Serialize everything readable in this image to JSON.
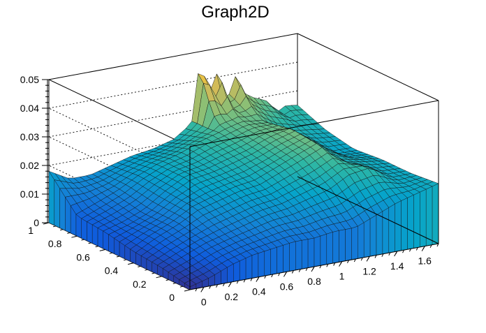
{
  "chart_data": {
    "type": "surface3d",
    "title": "Graph2D",
    "x_ticks": [
      "0",
      "0.2",
      "0.4",
      "0.6",
      "0.8",
      "1",
      "1.2",
      "1.4",
      "1.6"
    ],
    "y_ticks": [
      "0",
      "0.2",
      "0.4",
      "0.6",
      "0.8",
      "1"
    ],
    "z_ticks": [
      "0",
      "0.01",
      "0.02",
      "0.03",
      "0.04",
      "0.05"
    ],
    "xlim": [
      -0.1,
      1.7
    ],
    "ylim": [
      0,
      1
    ],
    "zlim": [
      0,
      0.05
    ],
    "colormap": [
      "#352a87",
      "#0f5cdd",
      "#1481d6",
      "#06a4ca",
      "#2eb7a4",
      "#87bf77",
      "#d1bb59",
      "#fec832",
      "#f9fb0e"
    ],
    "grid_x": [
      -0.1,
      0.05,
      0.2,
      0.35,
      0.5,
      0.65,
      0.8,
      0.95,
      1.1,
      1.25,
      1.4,
      1.55,
      1.7
    ],
    "grid_y": [
      0,
      0.2,
      0.4,
      0.6,
      0.8,
      1.0
    ],
    "z_values": [
      [
        0.001,
        0.003,
        0.006,
        0.008,
        0.009,
        0.01,
        0.01,
        0.011,
        0.011,
        0.014,
        0.017,
        0.019,
        0.021
      ],
      [
        0.003,
        0.006,
        0.009,
        0.011,
        0.013,
        0.015,
        0.016,
        0.018,
        0.02,
        0.024,
        0.025,
        0.02,
        0.02
      ],
      [
        0.004,
        0.008,
        0.011,
        0.015,
        0.017,
        0.019,
        0.02,
        0.023,
        0.026,
        0.029,
        0.022,
        0.021,
        0.02
      ],
      [
        0.006,
        0.008,
        0.011,
        0.016,
        0.02,
        0.021,
        0.023,
        0.025,
        0.028,
        0.03,
        0.025,
        0.019,
        0.019
      ],
      [
        0.007,
        0.01,
        0.013,
        0.017,
        0.02,
        0.022,
        0.025,
        0.027,
        0.029,
        0.028,
        0.023,
        0.022,
        0.021
      ],
      [
        0.018,
        0.014,
        0.014,
        0.016,
        0.018,
        0.019,
        0.021,
        0.026,
        0.03,
        0.033,
        0.031,
        0.026,
        0.025
      ]
    ],
    "peaks": [
      {
        "x": 1.0,
        "y": 1.0,
        "z": 0.049
      },
      {
        "x": 1.1,
        "y": 1.0,
        "z": 0.043
      },
      {
        "x": 1.25,
        "y": 1.0,
        "z": 0.039
      },
      {
        "x": 1.4,
        "y": 1.0,
        "z": 0.03
      },
      {
        "x": 1.55,
        "y": 1.0,
        "z": 0.024
      }
    ]
  }
}
